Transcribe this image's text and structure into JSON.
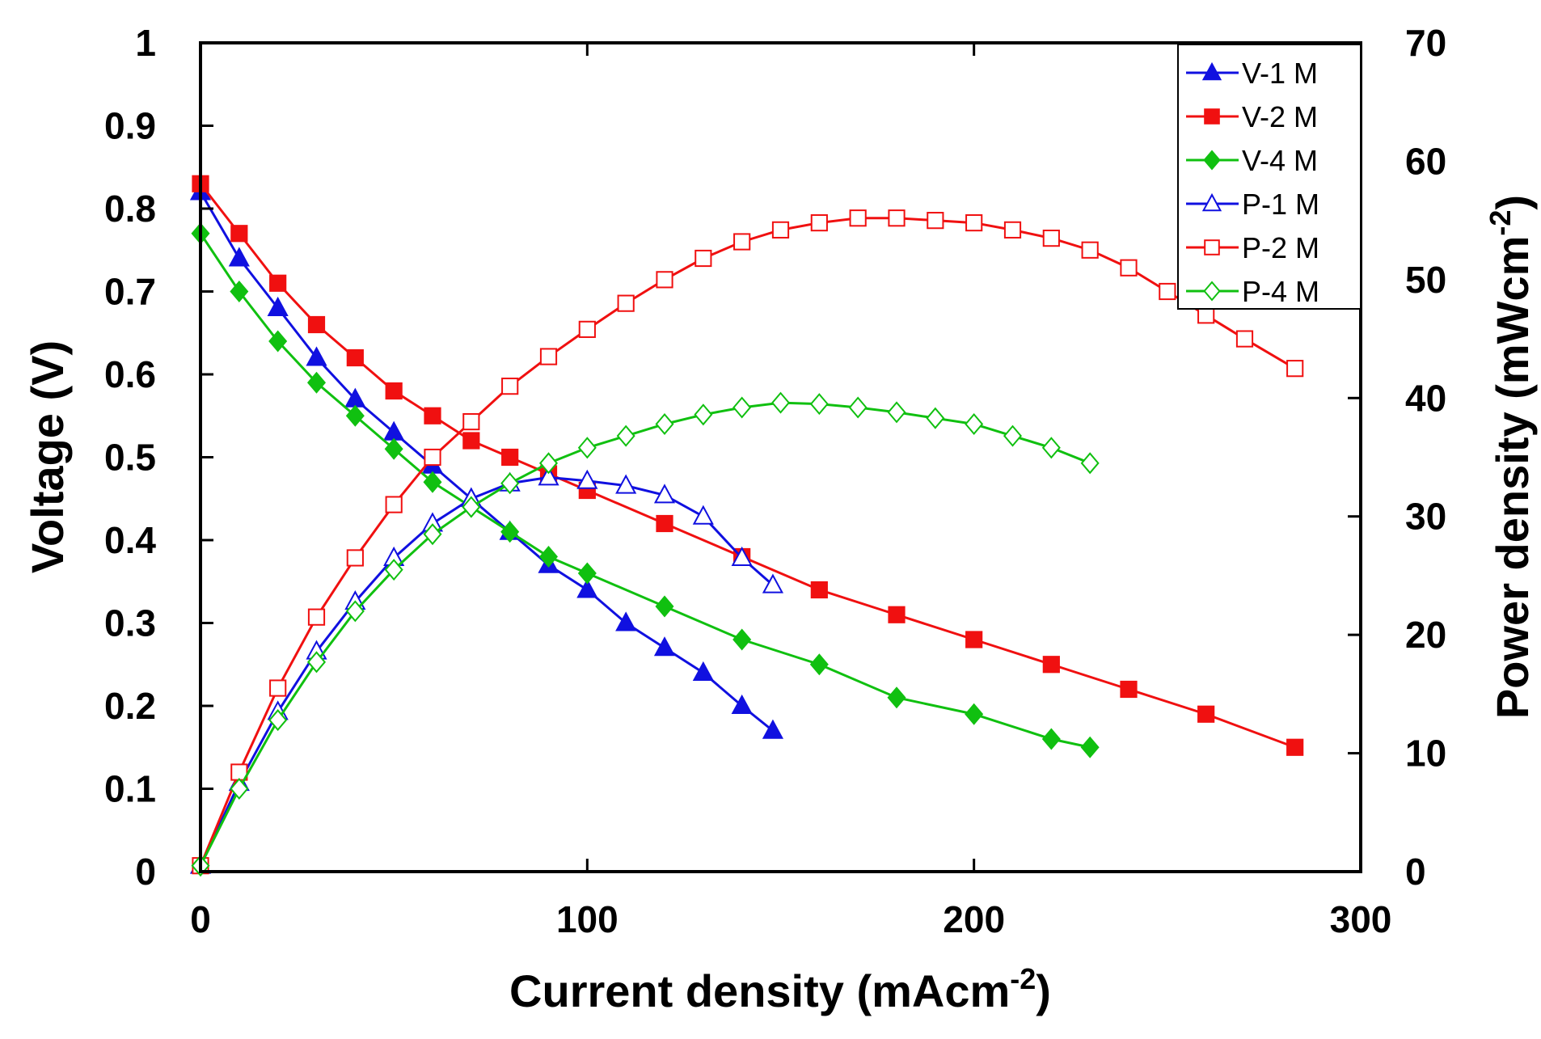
{
  "chart_data": {
    "type": "line",
    "xlabel": "Current density (mAcm",
    "xlabel_sup": "-2",
    "xlabel_end": ")",
    "ylabel": "Voltage (V)",
    "y2label": "Power density (mWcm",
    "y2label_sup": "-2",
    "y2label_end": ")",
    "xlim": [
      0,
      300
    ],
    "ylim": [
      0,
      1
    ],
    "y2lim": [
      0,
      70
    ],
    "x_ticks": [
      "0",
      "100",
      "200",
      "300"
    ],
    "y_ticks": [
      "0",
      "0.1",
      "0.2",
      "0.3",
      "0.4",
      "0.5",
      "0.6",
      "0.7",
      "0.8",
      "0.9",
      "1"
    ],
    "y2_ticks": [
      "0",
      "10",
      "20",
      "30",
      "40",
      "50",
      "60",
      "70"
    ],
    "legend_position": "top-right",
    "series": [
      {
        "name": "V-1 M",
        "axis": "left",
        "color": "#1010e0",
        "marker": "triangle",
        "filled": true,
        "x": [
          0,
          10,
          20,
          30,
          40,
          50,
          60,
          70,
          80,
          90,
          100,
          110,
          120,
          130,
          140,
          148
        ],
        "y": [
          0.82,
          0.74,
          0.68,
          0.62,
          0.57,
          0.53,
          0.49,
          0.45,
          0.41,
          0.37,
          0.34,
          0.3,
          0.27,
          0.24,
          0.2,
          0.17
        ]
      },
      {
        "name": "V-2 M",
        "axis": "left",
        "color": "#f01010",
        "marker": "square",
        "filled": true,
        "x": [
          0,
          10,
          20,
          30,
          40,
          50,
          60,
          70,
          80,
          90,
          100,
          120,
          140,
          160,
          180,
          200,
          220,
          240,
          260,
          283
        ],
        "y": [
          0.83,
          0.77,
          0.71,
          0.66,
          0.62,
          0.58,
          0.55,
          0.52,
          0.5,
          0.48,
          0.46,
          0.42,
          0.38,
          0.34,
          0.31,
          0.28,
          0.25,
          0.22,
          0.19,
          0.15
        ]
      },
      {
        "name": "V-4 M",
        "axis": "left",
        "color": "#10c010",
        "marker": "diamond",
        "filled": true,
        "x": [
          0,
          10,
          20,
          30,
          40,
          50,
          60,
          70,
          80,
          90,
          100,
          120,
          140,
          160,
          180,
          200,
          220,
          230
        ],
        "y": [
          0.77,
          0.7,
          0.64,
          0.59,
          0.55,
          0.51,
          0.47,
          0.44,
          0.41,
          0.38,
          0.36,
          0.32,
          0.28,
          0.25,
          0.21,
          0.19,
          0.16,
          0.15
        ]
      },
      {
        "name": "P-1 M",
        "axis": "right",
        "color": "#1010e0",
        "marker": "triangle",
        "filled": false,
        "x": [
          0,
          10,
          20,
          30,
          40,
          50,
          60,
          70,
          80,
          90,
          100,
          110,
          120,
          130,
          140,
          148
        ],
        "y": [
          0.5,
          7.5,
          13.5,
          18.6,
          22.8,
          26.5,
          29.4,
          31.5,
          32.8,
          33.3,
          33.0,
          32.6,
          31.8,
          30.0,
          26.5,
          24.2
        ]
      },
      {
        "name": "P-2 M",
        "axis": "right",
        "color": "#f01010",
        "marker": "square",
        "filled": false,
        "x": [
          0,
          10,
          20,
          30,
          40,
          50,
          60,
          70,
          80,
          90,
          100,
          110,
          120,
          130,
          140,
          150,
          160,
          170,
          180,
          190,
          200,
          210,
          220,
          230,
          240,
          250,
          260,
          270,
          283
        ],
        "y": [
          0.5,
          8.4,
          15.5,
          21.5,
          26.5,
          31.0,
          35.0,
          38.0,
          41.0,
          43.5,
          45.8,
          48.0,
          50.0,
          51.8,
          53.2,
          54.2,
          54.8,
          55.2,
          55.2,
          55.0,
          54.8,
          54.2,
          53.5,
          52.5,
          51.0,
          49.0,
          47.0,
          45.0,
          42.5
        ]
      },
      {
        "name": "P-4 M",
        "axis": "right",
        "color": "#10c010",
        "marker": "diamond",
        "filled": false,
        "x": [
          0,
          10,
          20,
          30,
          40,
          50,
          60,
          70,
          80,
          90,
          100,
          110,
          120,
          130,
          140,
          150,
          160,
          170,
          180,
          190,
          200,
          210,
          220,
          230
        ],
        "y": [
          0.5,
          7.0,
          12.8,
          17.7,
          22.0,
          25.5,
          28.5,
          30.8,
          32.8,
          34.5,
          35.8,
          36.8,
          37.8,
          38.6,
          39.2,
          39.6,
          39.5,
          39.2,
          38.8,
          38.3,
          37.8,
          36.8,
          35.8,
          34.5
        ]
      }
    ]
  }
}
